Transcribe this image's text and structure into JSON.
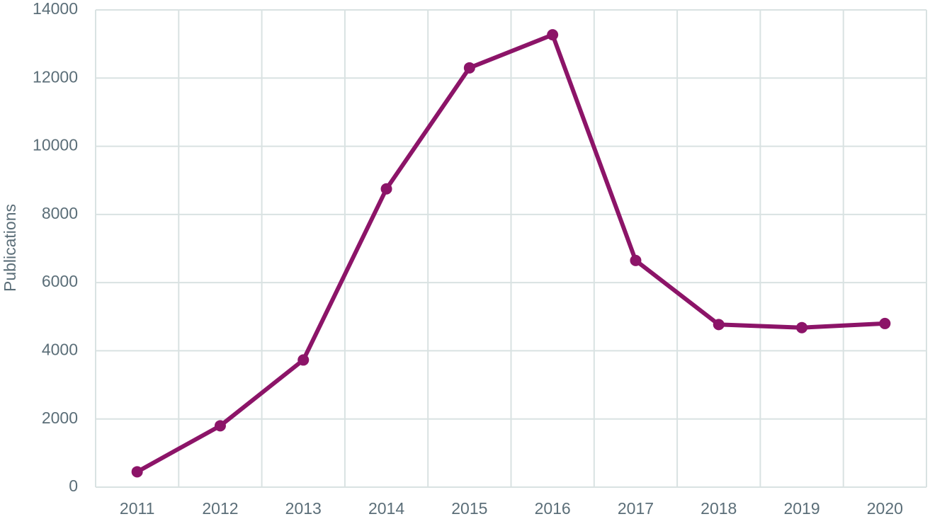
{
  "chart_data": {
    "type": "line",
    "y_label": "Publications",
    "categories": [
      "2011",
      "2012",
      "2013",
      "2014",
      "2015",
      "2016",
      "2017",
      "2018",
      "2019",
      "2020"
    ],
    "values": [
      450,
      1800,
      3730,
      8750,
      12300,
      13270,
      6650,
      4770,
      4680,
      4800
    ],
    "color": "#8c1468",
    "ylim": [
      0,
      14000
    ],
    "yticks": [
      0,
      2000,
      4000,
      6000,
      8000,
      10000,
      12000,
      14000
    ],
    "grid": true
  }
}
